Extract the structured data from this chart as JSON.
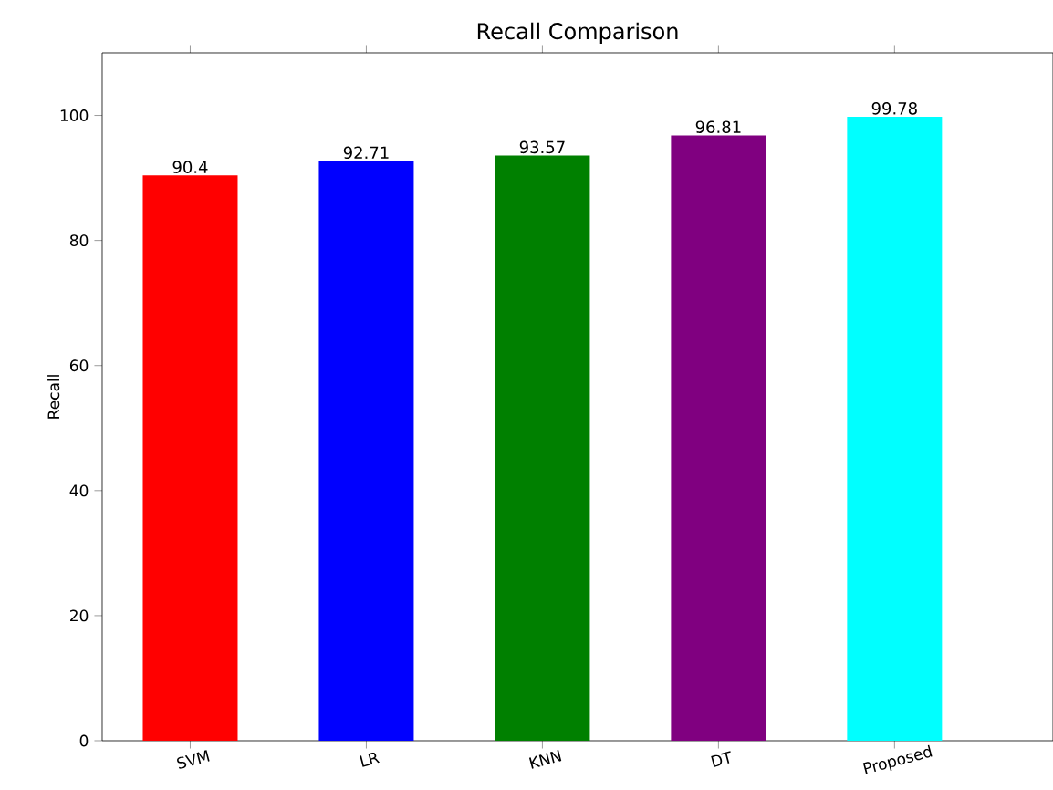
{
  "chart_data": {
    "type": "bar",
    "title": "Recall Comparison",
    "ylabel": "Recall",
    "categories": [
      "SVM",
      "LR",
      "KNN",
      "DT",
      "Proposed"
    ],
    "values": [
      90.4,
      92.71,
      93.57,
      96.81,
      99.78
    ],
    "colors": [
      "#ff0000",
      "#0000ff",
      "#008000",
      "#800080",
      "#00ffff"
    ],
    "ylim": [
      0,
      110
    ],
    "yticks": [
      0,
      20,
      40,
      60,
      80,
      100
    ],
    "data_labels": true
  }
}
